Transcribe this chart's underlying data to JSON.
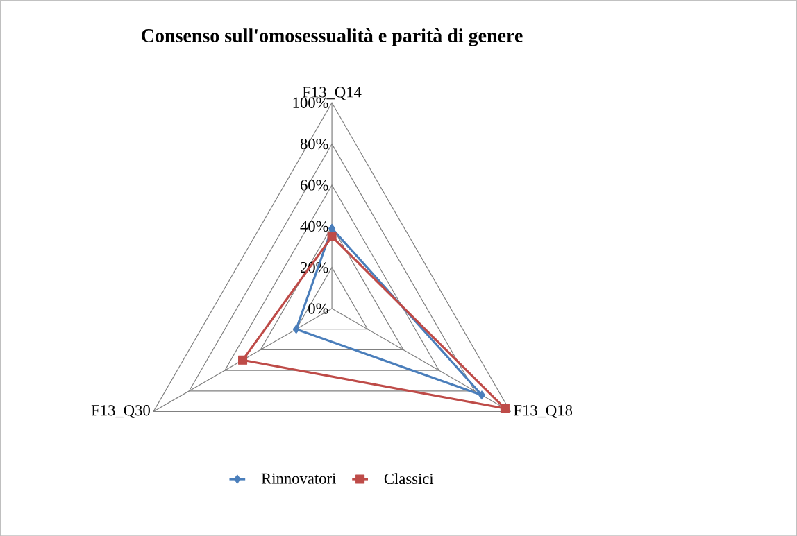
{
  "chart_data": {
    "type": "radar",
    "title": "Consenso sull'omosessualità e parità di genere",
    "categories": [
      "F13_Q14",
      "F13_Q18",
      "F13_Q30"
    ],
    "ylim": [
      0,
      100
    ],
    "yticks": [
      {
        "value": 0,
        "label": "0%"
      },
      {
        "value": 20,
        "label": "20%"
      },
      {
        "value": 40,
        "label": "40%"
      },
      {
        "value": 60,
        "label": "60%"
      },
      {
        "value": 80,
        "label": "80%"
      },
      {
        "value": 100,
        "label": "100%"
      }
    ],
    "grid": true,
    "legend": "bottom",
    "series": [
      {
        "name": "Rinnovatori",
        "color": "#4a7ebb",
        "marker": "diamond",
        "values": [
          39,
          84,
          20
        ]
      },
      {
        "name": "Classici",
        "color": "#be4b48",
        "marker": "square",
        "values": [
          35,
          97,
          50
        ]
      }
    ]
  }
}
